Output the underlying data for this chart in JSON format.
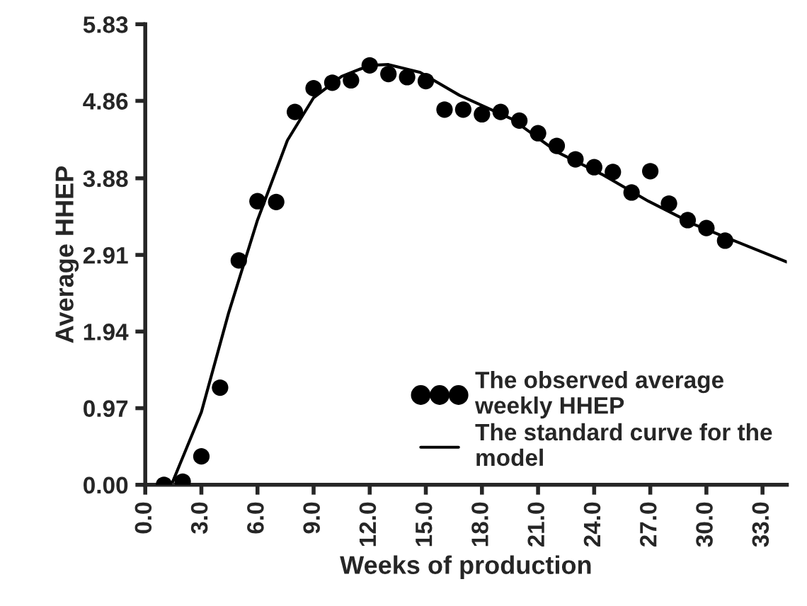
{
  "chart_data": {
    "type": "scatter",
    "xlabel": "Weeks of production",
    "ylabel": "Average HHEP",
    "xlim": [
      0,
      34.3
    ],
    "ylim": [
      0,
      5.83
    ],
    "xticks": [
      {
        "value": 0,
        "label": "0.0"
      },
      {
        "value": 3,
        "label": "3.0"
      },
      {
        "value": 6,
        "label": "6.0"
      },
      {
        "value": 9,
        "label": "9.0"
      },
      {
        "value": 12,
        "label": "12.0"
      },
      {
        "value": 15,
        "label": "15.0"
      },
      {
        "value": 18,
        "label": "18.0"
      },
      {
        "value": 21,
        "label": "21.0"
      },
      {
        "value": 24,
        "label": "24.0"
      },
      {
        "value": 27,
        "label": "27.0"
      },
      {
        "value": 30,
        "label": "30.0"
      },
      {
        "value": 33,
        "label": "33.0"
      }
    ],
    "yticks": [
      {
        "value": 0,
        "label": "0.00"
      },
      {
        "value": 0.97,
        "label": "0.97"
      },
      {
        "value": 1.94,
        "label": "1.94"
      },
      {
        "value": 2.91,
        "label": "2.91"
      },
      {
        "value": 3.88,
        "label": "3.88"
      },
      {
        "value": 4.86,
        "label": "4.86"
      },
      {
        "value": 5.83,
        "label": "5.83"
      }
    ],
    "grid": false,
    "legend": "bottom right",
    "marker": "circle",
    "series": [
      {
        "name": "The observed average weekly HHEP",
        "color": "#000000",
        "x": [
          1,
          2,
          3,
          4,
          5,
          6,
          7,
          8,
          9,
          10,
          11,
          12,
          13,
          14,
          15,
          16,
          17,
          18,
          19,
          20,
          21,
          22,
          23,
          24,
          25,
          26,
          27,
          28,
          29,
          30,
          31
        ],
        "values": [
          0,
          0.04,
          0.36,
          1.23,
          2.84,
          3.59,
          3.58,
          4.72,
          5.02,
          5.09,
          5.12,
          5.31,
          5.2,
          5.16,
          5.11,
          4.75,
          4.75,
          4.69,
          4.72,
          4.61,
          4.45,
          4.29,
          4.12,
          4.02,
          3.96,
          3.7,
          3.97,
          3.56,
          3.35,
          3.25,
          3.09
        ]
      },
      {
        "name": "The standard curve for the model",
        "type": "line",
        "color": "#000000",
        "marker": "none",
        "line_style": "solid",
        "x": [
          1.4,
          3,
          4.45,
          6,
          7.6,
          9,
          10.5,
          12,
          13,
          14.7,
          16.8,
          19.6,
          22.05,
          24.5,
          26.9,
          29.4,
          31.8,
          34.3
        ],
        "values": [
          0,
          0.92,
          2.17,
          3.35,
          4.36,
          4.9,
          5.17,
          5.31,
          5.32,
          5.22,
          4.93,
          4.63,
          4.21,
          3.92,
          3.59,
          3.29,
          3.06,
          2.82
        ]
      }
    ]
  }
}
